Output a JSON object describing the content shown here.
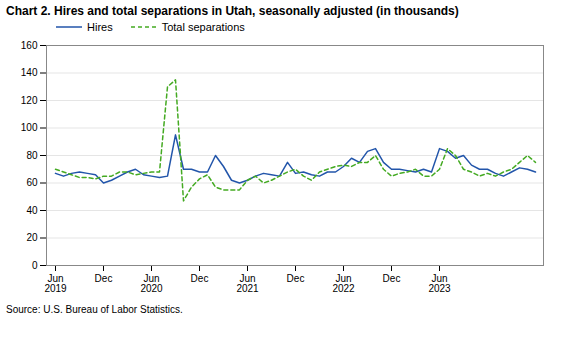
{
  "chart_data": {
    "type": "line",
    "title": "Chart 2. Hires and total separations in Utah, seasonally adjusted (in thousands)",
    "source": "Source: U.S. Bureau of Labor Statistics.",
    "categories": [
      "Jun\n2019",
      null,
      null,
      null,
      null,
      null,
      "Dec",
      null,
      null,
      null,
      null,
      null,
      "Jun\n2020",
      null,
      null,
      null,
      null,
      null,
      "Dec",
      null,
      null,
      null,
      null,
      null,
      "Jun\n2021",
      null,
      null,
      null,
      null,
      null,
      "Dec",
      null,
      null,
      null,
      null,
      null,
      "Jun\n2022",
      null,
      null,
      null,
      null,
      null,
      "Dec",
      null,
      null,
      null,
      null,
      null,
      "Jun\n2023",
      null,
      null,
      null,
      null,
      null,
      null,
      null,
      null,
      null,
      null,
      null,
      null
    ],
    "series": [
      {
        "name": "Hires",
        "color": "#2255aa",
        "line_style": "solid",
        "values": [
          67,
          65,
          67,
          68,
          67,
          66,
          60,
          62,
          65,
          68,
          70,
          66,
          65,
          64,
          65,
          95,
          70,
          70,
          68,
          68,
          80,
          72,
          62,
          60,
          62,
          65,
          67,
          66,
          65,
          75,
          67,
          68,
          66,
          65,
          68,
          68,
          72,
          78,
          75,
          83,
          85,
          75,
          70,
          70,
          69,
          68,
          70,
          68,
          85,
          83,
          78,
          80,
          73,
          70,
          70,
          67,
          65,
          68,
          71,
          70,
          68
        ]
      },
      {
        "name": "Total separations",
        "color": "#44aa22",
        "line_style": "dashed",
        "values": [
          70,
          68,
          66,
          64,
          64,
          63,
          65,
          65,
          68,
          68,
          66,
          67,
          68,
          68,
          130,
          135,
          47,
          57,
          63,
          66,
          57,
          55,
          55,
          55,
          62,
          65,
          60,
          62,
          65,
          68,
          70,
          65,
          62,
          68,
          70,
          72,
          73,
          72,
          75,
          75,
          80,
          70,
          65,
          67,
          68,
          70,
          65,
          65,
          70,
          85,
          80,
          70,
          68,
          65,
          67,
          65,
          68,
          70,
          75,
          80,
          75
        ]
      }
    ],
    "ylim": [
      0,
      160
    ],
    "yticks": [
      0,
      20,
      40,
      60,
      80,
      100,
      120,
      140,
      160
    ],
    "grid": true,
    "legend": "upper left"
  }
}
